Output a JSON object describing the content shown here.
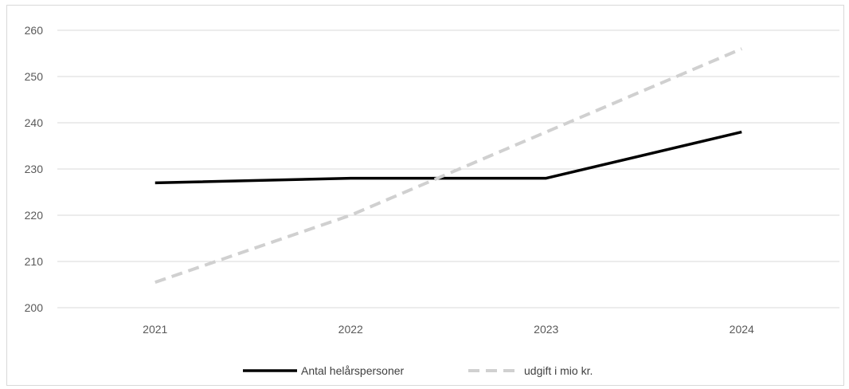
{
  "chart_data": {
    "type": "line",
    "categories": [
      "2021",
      "2022",
      "2023",
      "2024"
    ],
    "series": [
      {
        "name": "Antal helårspersoner",
        "values": [
          227,
          228,
          228,
          238
        ],
        "color": "#000000",
        "dash": "solid"
      },
      {
        "name": "udgift i mio kr.",
        "values": [
          205.5,
          220,
          238,
          256
        ],
        "color": "#d0d0d0",
        "dash": "dashed"
      }
    ],
    "title": "",
    "xlabel": "",
    "ylabel": "",
    "ylim": [
      200,
      260
    ],
    "yticks": [
      200,
      210,
      220,
      230,
      240,
      250,
      260
    ],
    "grid": true,
    "legend_position": "bottom"
  }
}
